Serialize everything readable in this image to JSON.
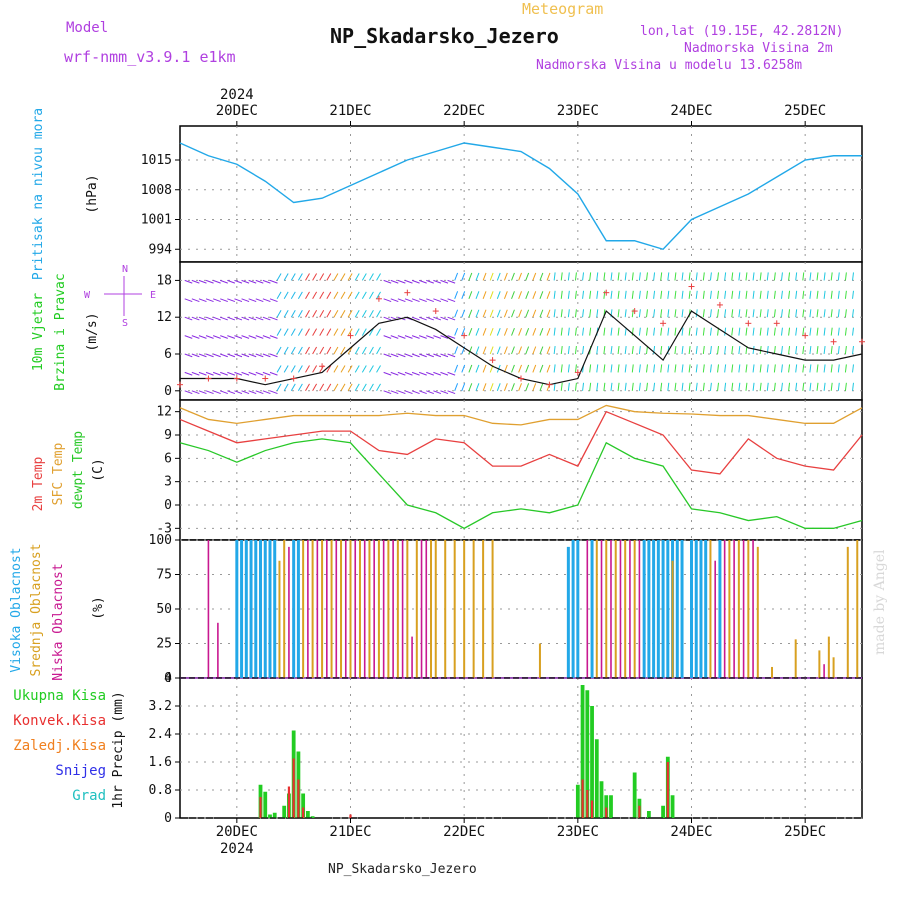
{
  "header": {
    "model_label": "Model",
    "model_name": "wrf-nmm_v3.9.1  e1km",
    "meteogram": "Meteogram",
    "station": "NP_Skadarsko_Jezero",
    "lonlat": "lon,lat (19.15E, 42.2812N)",
    "elev": "Nadmorska Visina 2m",
    "elev_model": "Nadmorska Visina u modelu 13.6258m",
    "footer_station": "NP_Skadarsko_Jezero",
    "watermark": "made by Angel"
  },
  "colors": {
    "pressure": "#22a8e8",
    "temp2m": "#e84040",
    "sfc": "#e0a030",
    "dewpt": "#28c828",
    "high": "#22a8e8",
    "mid": "#d8a020",
    "low": "#c81890",
    "precip_total": "#22cc22",
    "precip_conv": "#e83030",
    "precip_frz": "#f08020",
    "snow": "#3030e8",
    "hail": "#20c0c0",
    "title_purple": "#b040e0",
    "meteogram": "#f0c050"
  },
  "chart_data": [
    {
      "type": "line",
      "panel": "pressure",
      "ylabel": [
        "Pritisak na nivou mora",
        "(hPa)"
      ],
      "yticks": [
        994,
        1001,
        1008,
        1015
      ],
      "ylim": [
        991,
        1023
      ],
      "x": [
        "19DEC 12h",
        "19DEC 18h",
        "20DEC 00h",
        "20DEC 06h",
        "20DEC 12h",
        "20DEC 18h",
        "21DEC 00h",
        "21DEC 06h",
        "21DEC 12h",
        "21DEC 18h",
        "22DEC 00h",
        "22DEC 06h",
        "22DEC 12h",
        "22DEC 18h",
        "23DEC 00h",
        "23DEC 06h",
        "23DEC 12h",
        "23DEC 18h",
        "24DEC 00h",
        "24DEC 06h",
        "24DEC 12h",
        "24DEC 18h",
        "25DEC 00h",
        "25DEC 06h",
        "25DEC 12h"
      ],
      "series": [
        {
          "values": [
            1019,
            1016,
            1014,
            1010,
            1005,
            1006,
            1009,
            1012,
            1015,
            1017,
            1019,
            1018,
            1017,
            1013,
            1007,
            996,
            996,
            994,
            1001,
            1004,
            1007,
            1011,
            1015,
            1016,
            1016
          ]
        }
      ]
    },
    {
      "type": "line",
      "panel": "wind",
      "ylabel": [
        "10m Vjetar",
        "Brzina i Pravac",
        "(m/s)"
      ],
      "compass": [
        "N",
        "W",
        "E",
        "S"
      ],
      "yticks": [
        0,
        6,
        12,
        18
      ],
      "ylim": [
        -1.5,
        21
      ],
      "x": [
        "19DEC 12h",
        "19DEC 18h",
        "20DEC 00h",
        "20DEC 06h",
        "20DEC 12h",
        "20DEC 18h",
        "21DEC 00h",
        "21DEC 06h",
        "21DEC 12h",
        "21DEC 18h",
        "22DEC 00h",
        "22DEC 06h",
        "22DEC 12h",
        "22DEC 18h",
        "23DEC 00h",
        "23DEC 06h",
        "23DEC 12h",
        "23DEC 18h",
        "24DEC 00h",
        "24DEC 06h",
        "24DEC 12h",
        "24DEC 18h",
        "25DEC 00h",
        "25DEC 06h",
        "25DEC 12h"
      ],
      "series": [
        {
          "name": "speed",
          "values": [
            2,
            2,
            2,
            1,
            2,
            3,
            7,
            11,
            12,
            10,
            7,
            4,
            2,
            1,
            2,
            13,
            9,
            5,
            13,
            10,
            7,
            6,
            5,
            5,
            6
          ]
        },
        {
          "name": "gust",
          "values": [
            1,
            2,
            2,
            2,
            2,
            4,
            9,
            15,
            16,
            13,
            9,
            5,
            2,
            1,
            3,
            16,
            13,
            11,
            17,
            14,
            11,
            11,
            9,
            8,
            8
          ]
        }
      ]
    },
    {
      "type": "line",
      "panel": "temperature",
      "ylabel": [
        "2m Temp",
        "SFC Temp",
        "dewpt Temp",
        "(C)"
      ],
      "yticks": [
        -3,
        0,
        3,
        6,
        9,
        12
      ],
      "ylim": [
        -4.5,
        13.5
      ],
      "x": [
        "19DEC 12h",
        "19DEC 18h",
        "20DEC 00h",
        "20DEC 06h",
        "20DEC 12h",
        "20DEC 18h",
        "21DEC 00h",
        "21DEC 06h",
        "21DEC 12h",
        "21DEC 18h",
        "22DEC 00h",
        "22DEC 06h",
        "22DEC 12h",
        "22DEC 18h",
        "23DEC 00h",
        "23DEC 06h",
        "23DEC 12h",
        "23DEC 18h",
        "24DEC 00h",
        "24DEC 06h",
        "24DEC 12h",
        "24DEC 18h",
        "25DEC 00h",
        "25DEC 06h",
        "25DEC 12h"
      ],
      "series": [
        {
          "name": "2m Temp",
          "values": [
            11,
            9.5,
            8,
            8.5,
            9,
            9.5,
            9.5,
            7,
            6.5,
            8.5,
            8,
            5,
            5,
            6.5,
            5,
            12,
            10.5,
            9,
            4.5,
            4,
            8.5,
            6,
            5,
            4.5,
            9
          ]
        },
        {
          "name": "SFC Temp",
          "values": [
            12.5,
            11,
            10.5,
            11,
            11.5,
            11.5,
            11.5,
            11.5,
            11.8,
            11.5,
            11.5,
            10.5,
            10.3,
            11,
            11,
            12.8,
            12,
            11.8,
            11.7,
            11.5,
            11.5,
            11,
            10.5,
            10.5,
            12.5
          ]
        },
        {
          "name": "dewpt Temp",
          "values": [
            8,
            7,
            5.5,
            7,
            8,
            8.5,
            8,
            4,
            0,
            -1,
            -3,
            -1,
            -0.5,
            -1,
            0,
            8,
            6,
            5,
            -0.5,
            -1,
            -2,
            -1.5,
            -3,
            -3,
            -2
          ]
        }
      ]
    },
    {
      "type": "bar",
      "panel": "clouds",
      "ylabel": [
        "Visoka Oblacnost",
        "Srednja Oblacnost",
        "Niska Oblacnost",
        "(%)"
      ],
      "yticks": [
        0,
        25,
        50,
        75,
        100
      ],
      "ylim": [
        0,
        100
      ],
      "series": [
        {
          "name": "Visoka Oblacnost",
          "x": [
            "20DEC 00h",
            "20DEC 01h",
            "20DEC 02h",
            "20DEC 03h",
            "20DEC 04h",
            "20DEC 05h",
            "20DEC 06h",
            "20DEC 07h",
            "20DEC 08h",
            "20DEC 12h",
            "20DEC 13h",
            "22DEC 22h",
            "22DEC 23h",
            "23DEC 00h",
            "23DEC 03h",
            "23DEC 14h",
            "23DEC 15h",
            "23DEC 16h",
            "23DEC 17h",
            "23DEC 18h",
            "23DEC 19h",
            "23DEC 20h",
            "23DEC 21h",
            "23DEC 22h",
            "24DEC 00h",
            "24DEC 01h",
            "24DEC 02h",
            "24DEC 03h",
            "24DEC 06h"
          ],
          "values": [
            100,
            100,
            100,
            100,
            100,
            100,
            100,
            100,
            100,
            100,
            100,
            95,
            100,
            100,
            100,
            100,
            100,
            100,
            100,
            100,
            100,
            100,
            100,
            100,
            100,
            100,
            100,
            100,
            100
          ]
        },
        {
          "name": "Srednja Oblacnost",
          "x": [
            "20DEC 09h",
            "20DEC 10h",
            "20DEC 14h",
            "20DEC 16h",
            "20DEC 18h",
            "20DEC 20h",
            "20DEC 22h",
            "21DEC 00h",
            "21DEC 02h",
            "21DEC 04h",
            "21DEC 06h",
            "21DEC 08h",
            "21DEC 10h",
            "21DEC 12h",
            "21DEC 14h",
            "21DEC 17h",
            "21DEC 18h",
            "21DEC 20h",
            "21DEC 22h",
            "22DEC 00h",
            "22DEC 02h",
            "22DEC 04h",
            "22DEC 06h",
            "22DEC 16h",
            "23DEC 04h",
            "23DEC 06h",
            "23DEC 08h",
            "23DEC 10h",
            "23DEC 12h",
            "23DEC 20h",
            "24DEC 04h",
            "24DEC 08h",
            "24DEC 10h",
            "24DEC 12h",
            "24DEC 14h",
            "24DEC 17h",
            "24DEC 22h",
            "25DEC 03h",
            "25DEC 05h",
            "25DEC 06h",
            "25DEC 09h",
            "25DEC 11h"
          ],
          "values": [
            85,
            100,
            100,
            100,
            100,
            100,
            100,
            100,
            100,
            100,
            100,
            100,
            100,
            100,
            100,
            100,
            100,
            100,
            100,
            100,
            100,
            100,
            100,
            25,
            100,
            100,
            100,
            100,
            100,
            85,
            100,
            100,
            100,
            100,
            95,
            8,
            28,
            20,
            30,
            15,
            95,
            100
          ]
        },
        {
          "name": "Niska Oblacnost",
          "x": [
            "19DEC 18h",
            "19DEC 20h",
            "20DEC 11h",
            "20DEC 15h",
            "20DEC 17h",
            "20DEC 19h",
            "20DEC 21h",
            "20DEC 23h",
            "21DEC 01h",
            "21DEC 03h",
            "21DEC 05h",
            "21DEC 07h",
            "21DEC 09h",
            "21DEC 11h",
            "21DEC 13h",
            "21DEC 15h",
            "21DEC 16h",
            "23DEC 02h",
            "23DEC 05h",
            "23DEC 07h",
            "23DEC 09h",
            "23DEC 11h",
            "23DEC 13h",
            "24DEC 05h",
            "24DEC 07h",
            "24DEC 09h",
            "24DEC 11h",
            "24DEC 13h",
            "25DEC 04h"
          ],
          "values": [
            100,
            40,
            95,
            100,
            100,
            100,
            100,
            100,
            100,
            100,
            100,
            100,
            100,
            100,
            30,
            100,
            100,
            100,
            100,
            100,
            100,
            100,
            100,
            85,
            100,
            100,
            100,
            100,
            10
          ]
        }
      ]
    },
    {
      "type": "bar",
      "panel": "precip",
      "ylabel": [
        "1hr Precip (mm)"
      ],
      "legend": [
        "Ukupna Kisa",
        "Konvek.Kisa",
        "Zaledj.Kisa",
        "Snijeg",
        "Grad"
      ],
      "yticks": [
        0,
        0.8,
        1.6,
        2.4,
        3.2,
        4
      ],
      "ytick_labels": [
        "0",
        "0.8",
        "1.6",
        "2.4",
        "3.2",
        "4"
      ],
      "ylim": [
        0,
        4
      ],
      "series": [
        {
          "name": "Ukupna Kisa",
          "x": [
            "20DEC 05h",
            "20DEC 06h",
            "20DEC 07h",
            "20DEC 08h",
            "20DEC 10h",
            "20DEC 11h",
            "20DEC 12h",
            "20DEC 13h",
            "20DEC 14h",
            "20DEC 15h",
            "20DEC 16h",
            "23DEC 00h",
            "23DEC 01h",
            "23DEC 02h",
            "23DEC 03h",
            "23DEC 04h",
            "23DEC 05h",
            "23DEC 06h",
            "23DEC 07h",
            "23DEC 12h",
            "23DEC 13h",
            "23DEC 15h",
            "23DEC 18h",
            "23DEC 19h",
            "23DEC 20h"
          ],
          "values": [
            0.95,
            0.75,
            0.1,
            0.15,
            0.35,
            0.7,
            2.5,
            1.9,
            0.7,
            0.2,
            0.05,
            0.95,
            3.8,
            3.65,
            3.2,
            2.25,
            1.05,
            0.65,
            0.65,
            1.3,
            0.55,
            0.2,
            0.35,
            1.75,
            0.65
          ]
        },
        {
          "name": "Konvek.Kisa",
          "x": [
            "20DEC 05h",
            "20DEC 11h",
            "20DEC 12h",
            "20DEC 13h",
            "20DEC 14h",
            "21DEC 00h",
            "23DEC 01h",
            "23DEC 02h",
            "23DEC 03h",
            "23DEC 06h",
            "23DEC 13h",
            "23DEC 19h"
          ],
          "values": [
            0.6,
            0.9,
            1.7,
            1.1,
            0.3,
            0.1,
            1.1,
            0.8,
            0.5,
            0.3,
            0.35,
            1.6
          ]
        }
      ]
    }
  ],
  "xaxis": {
    "ticks_top": [
      "20DEC",
      "21DEC",
      "22DEC",
      "23DEC",
      "24DEC",
      "25DEC"
    ],
    "ticks_bottom": [
      "20DEC",
      "21DEC",
      "22DEC",
      "23DEC",
      "24DEC",
      "25DEC"
    ],
    "year_top": "2024",
    "year_bottom": "2024",
    "start": "19DEC 12h",
    "end": "25DEC 12h"
  }
}
